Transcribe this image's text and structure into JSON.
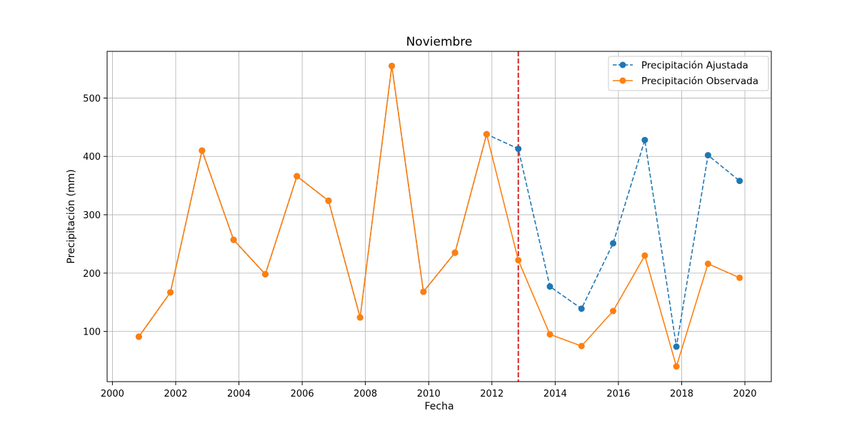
{
  "chart_data": {
    "type": "line",
    "title": "Noviembre",
    "xlabel": "Fecha",
    "ylabel": "Precipitación (mm)",
    "xlim": [
      "1999-11-01",
      "2020-11-01"
    ],
    "ylim": [
      14,
      580
    ],
    "x_ticks": [
      "2000",
      "2002",
      "2004",
      "2006",
      "2008",
      "2010",
      "2012",
      "2014",
      "2016",
      "2018",
      "2020"
    ],
    "y_ticks": [
      100,
      200,
      300,
      400,
      500
    ],
    "grid": true,
    "legend_position": "top-right",
    "x": [
      "2000-11-01",
      "2001-11-01",
      "2002-11-01",
      "2003-11-01",
      "2004-11-01",
      "2005-11-01",
      "2006-11-01",
      "2007-11-01",
      "2008-11-01",
      "2009-11-01",
      "2010-11-01",
      "2011-11-01",
      "2012-11-01",
      "2013-11-01",
      "2014-11-01",
      "2015-11-01",
      "2016-11-01",
      "2017-11-01",
      "2018-11-01",
      "2019-11-01"
    ],
    "series": [
      {
        "name": "Precipitación Ajustada",
        "color": "#1f77b4",
        "line_style": "dashed",
        "marker": "circle",
        "values": [
          91,
          167,
          410,
          257,
          198,
          366,
          324,
          124,
          555,
          168,
          235,
          438,
          413,
          177,
          139,
          251,
          428,
          74,
          402,
          358
        ]
      },
      {
        "name": "Precipitación Observada",
        "color": "#ff7f0e",
        "line_style": "solid",
        "marker": "circle",
        "values": [
          91,
          167,
          410,
          257,
          198,
          366,
          324,
          124,
          555,
          168,
          235,
          438,
          222,
          95,
          75,
          135,
          230,
          40,
          216,
          192
        ]
      }
    ],
    "reference_line": {
      "orientation": "vertical",
      "x": "2012-11-01",
      "color": "#d62728",
      "line_style": "dashed"
    }
  }
}
